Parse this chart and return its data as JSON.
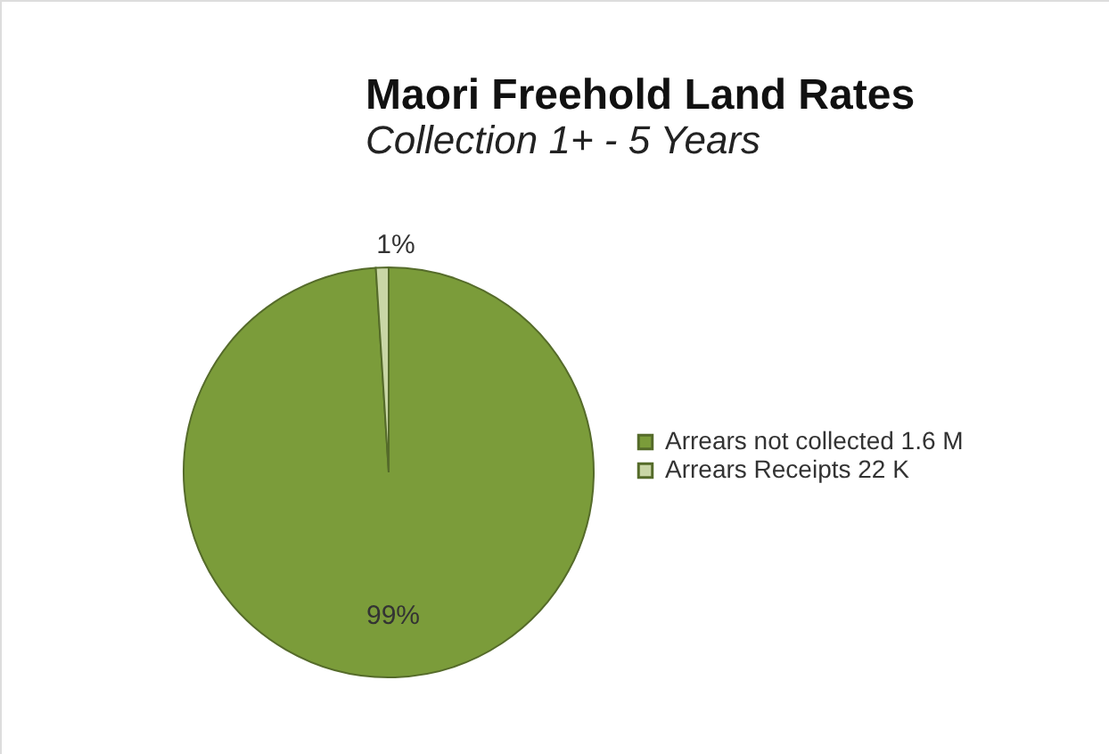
{
  "chart_data": {
    "type": "pie",
    "title": "Maori Freehold Land Rates",
    "subtitle": "Collection 1+ - 5 Years",
    "categories": [
      "Arrears not collected 1.6 M",
      "Arrears Receipts 22 K"
    ],
    "values": [
      99,
      1
    ],
    "colors": [
      "#7b9c3a",
      "#c9d6a6"
    ],
    "value_labels": [
      "99%",
      "1%"
    ],
    "legend": "right"
  }
}
